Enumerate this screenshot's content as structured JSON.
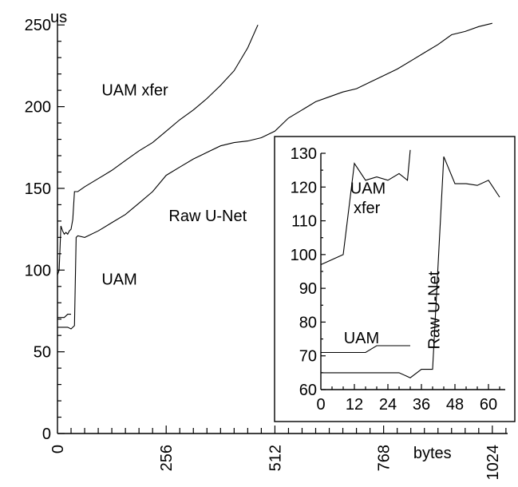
{
  "chart_data": [
    {
      "type": "line",
      "title": "",
      "xlabel": "bytes",
      "ylabel": "us",
      "xlim": [
        0,
        1060
      ],
      "ylim": [
        0,
        255
      ],
      "xticks": [
        0,
        256,
        512,
        768,
        1024
      ],
      "xtick_labels": [
        "0",
        "256",
        "512",
        "768",
        "1024"
      ],
      "yticks": [
        0,
        50,
        100,
        150,
        200,
        250
      ],
      "ytick_labels": [
        "0",
        "50",
        "100",
        "150",
        "200",
        "250"
      ],
      "grid": false,
      "annotations": [
        "UAM xfer",
        "Raw U-Net",
        "UAM"
      ],
      "series": [
        {
          "name": "UAM xfer",
          "x": [
            0,
            4,
            8,
            12,
            16,
            20,
            24,
            28,
            32,
            36,
            40,
            48,
            64,
            96,
            128,
            160,
            192,
            224,
            256,
            288,
            320,
            352,
            384,
            416,
            448,
            472
          ],
          "values": [
            97,
            100,
            127,
            124,
            122,
            123,
            122,
            124,
            125,
            131,
            148,
            148,
            151,
            156,
            161,
            167,
            173,
            178,
            185,
            192,
            198,
            205,
            213,
            222,
            236,
            250
          ]
        },
        {
          "name": "Raw U-Net",
          "x": [
            0,
            8,
            16,
            24,
            32,
            40,
            44,
            48,
            64,
            96,
            128,
            160,
            192,
            224,
            256,
            288,
            320,
            352,
            384,
            416,
            448,
            480,
            512,
            544,
            576,
            608,
            640,
            672,
            704,
            736,
            768,
            800,
            832,
            864,
            896,
            928,
            960,
            992,
            1024
          ],
          "values": [
            65,
            65,
            65,
            65,
            64,
            66,
            120,
            121,
            120,
            124,
            129,
            134,
            141,
            148,
            158,
            163,
            168,
            172,
            176,
            178,
            179,
            181,
            185,
            193,
            198,
            203,
            206,
            209,
            211,
            215,
            219,
            223,
            228,
            233,
            238,
            244,
            246,
            249,
            251
          ]
        },
        {
          "name": "UAM",
          "x": [
            0,
            8,
            16,
            24,
            32
          ],
          "values": [
            71,
            71,
            71,
            73,
            73
          ]
        }
      ]
    },
    {
      "type": "line",
      "title": "",
      "xlabel": "",
      "ylabel": "",
      "xlim": [
        0,
        66
      ],
      "ylim": [
        60,
        130
      ],
      "xticks": [
        0,
        12,
        24,
        36,
        48,
        60
      ],
      "xtick_labels": [
        "0",
        "12",
        "24",
        "36",
        "48",
        "60"
      ],
      "yticks": [
        60,
        70,
        80,
        90,
        100,
        110,
        120,
        130
      ],
      "ytick_labels": [
        "60",
        "70",
        "80",
        "90",
        "100",
        "110",
        "120",
        "130"
      ],
      "grid": false,
      "annotations": [
        "UAM xfer",
        "Raw U-Net",
        "UAM"
      ],
      "series": [
        {
          "name": "UAM xfer",
          "x": [
            0,
            8,
            12,
            16,
            20,
            24,
            28,
            31,
            32
          ],
          "values": [
            97,
            100,
            127,
            122,
            123,
            122,
            124,
            122,
            131
          ]
        },
        {
          "name": "Raw U-Net",
          "x": [
            0,
            8,
            16,
            24,
            28,
            32,
            36,
            40,
            44,
            48,
            52,
            56,
            60,
            64
          ],
          "values": [
            65,
            65,
            65,
            65,
            65,
            63.5,
            66,
            66,
            129,
            121,
            121,
            120.5,
            122,
            117
          ]
        },
        {
          "name": "UAM",
          "x": [
            0,
            8,
            12,
            16,
            20,
            24,
            28,
            32
          ],
          "values": [
            71,
            71,
            71,
            71,
            73,
            73,
            73,
            73
          ]
        }
      ]
    }
  ]
}
